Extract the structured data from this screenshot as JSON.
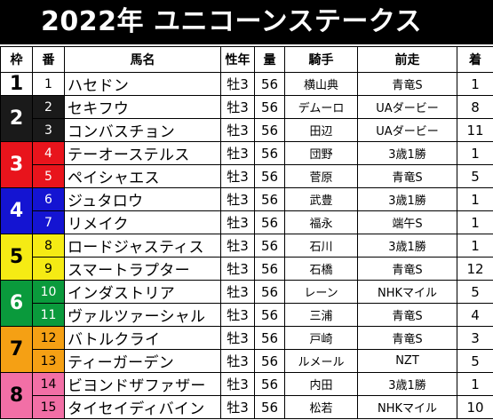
{
  "title": "2022年 ユニコーンステークス",
  "headers": [
    "枠",
    "番",
    "馬名",
    "性年",
    "量",
    "騎手",
    "前走",
    "着"
  ],
  "frame_colors": {
    "1": {
      "bg": "#ffffff",
      "fg": "#000000"
    },
    "2": {
      "bg": "#1a1a1a",
      "fg": "#ffffff"
    },
    "3": {
      "bg": "#e8141c",
      "fg": "#ffffff"
    },
    "4": {
      "bg": "#1414d2",
      "fg": "#ffffff"
    },
    "5": {
      "bg": "#f5eb14",
      "fg": "#000000"
    },
    "6": {
      "bg": "#0a9a3c",
      "fg": "#ffffff"
    },
    "7": {
      "bg": "#f5a014",
      "fg": "#000000"
    },
    "8": {
      "bg": "#f26fa6",
      "fg": "#000000"
    }
  },
  "rows": [
    {
      "frame": "1",
      "num": "1",
      "horse": "ハセドン",
      "sex_age": "牡3",
      "weight": "56",
      "jockey": "横山典",
      "prev_race": "青竜S",
      "prev_finish": "1"
    },
    {
      "frame": "2",
      "num": "2",
      "horse": "セキフウ",
      "sex_age": "牡3",
      "weight": "56",
      "jockey": "デムーロ",
      "prev_race": "UAダービー",
      "prev_finish": "8"
    },
    {
      "frame": "2",
      "num": "3",
      "horse": "コンバスチョン",
      "sex_age": "牡3",
      "weight": "56",
      "jockey": "田辺",
      "prev_race": "UAダービー",
      "prev_finish": "11"
    },
    {
      "frame": "3",
      "num": "4",
      "horse": "テーオーステルス",
      "sex_age": "牡3",
      "weight": "56",
      "jockey": "団野",
      "prev_race": "3歳1勝",
      "prev_finish": "1"
    },
    {
      "frame": "3",
      "num": "5",
      "horse": "ペイシャエス",
      "sex_age": "牡3",
      "weight": "56",
      "jockey": "菅原",
      "prev_race": "青竜S",
      "prev_finish": "5"
    },
    {
      "frame": "4",
      "num": "6",
      "horse": "ジュタロウ",
      "sex_age": "牡3",
      "weight": "56",
      "jockey": "武豊",
      "prev_race": "3歳1勝",
      "prev_finish": "1"
    },
    {
      "frame": "4",
      "num": "7",
      "horse": "リメイク",
      "sex_age": "牡3",
      "weight": "56",
      "jockey": "福永",
      "prev_race": "端午S",
      "prev_finish": "1"
    },
    {
      "frame": "5",
      "num": "8",
      "horse": "ロードジャスティス",
      "sex_age": "牡3",
      "weight": "56",
      "jockey": "石川",
      "prev_race": "3歳1勝",
      "prev_finish": "1"
    },
    {
      "frame": "5",
      "num": "9",
      "horse": "スマートラプター",
      "sex_age": "牡3",
      "weight": "56",
      "jockey": "石橋",
      "prev_race": "青竜S",
      "prev_finish": "12"
    },
    {
      "frame": "6",
      "num": "10",
      "horse": "インダストリア",
      "sex_age": "牡3",
      "weight": "56",
      "jockey": "レーン",
      "prev_race": "NHKマイル",
      "prev_finish": "5"
    },
    {
      "frame": "6",
      "num": "11",
      "horse": "ヴァルツァーシャル",
      "sex_age": "牡3",
      "weight": "56",
      "jockey": "三浦",
      "prev_race": "青竜S",
      "prev_finish": "4"
    },
    {
      "frame": "7",
      "num": "12",
      "horse": "バトルクライ",
      "sex_age": "牡3",
      "weight": "56",
      "jockey": "戸崎",
      "prev_race": "青竜S",
      "prev_finish": "3"
    },
    {
      "frame": "7",
      "num": "13",
      "horse": "ティーガーデン",
      "sex_age": "牡3",
      "weight": "56",
      "jockey": "ルメール",
      "prev_race": "NZT",
      "prev_finish": "5"
    },
    {
      "frame": "8",
      "num": "14",
      "horse": "ビヨンドザファザー",
      "sex_age": "牡3",
      "weight": "56",
      "jockey": "内田",
      "prev_race": "3歳1勝",
      "prev_finish": "1"
    },
    {
      "frame": "8",
      "num": "15",
      "horse": "タイセイディバイン",
      "sex_age": "牡3",
      "weight": "56",
      "jockey": "松若",
      "prev_race": "NHKマイル",
      "prev_finish": "10"
    }
  ]
}
